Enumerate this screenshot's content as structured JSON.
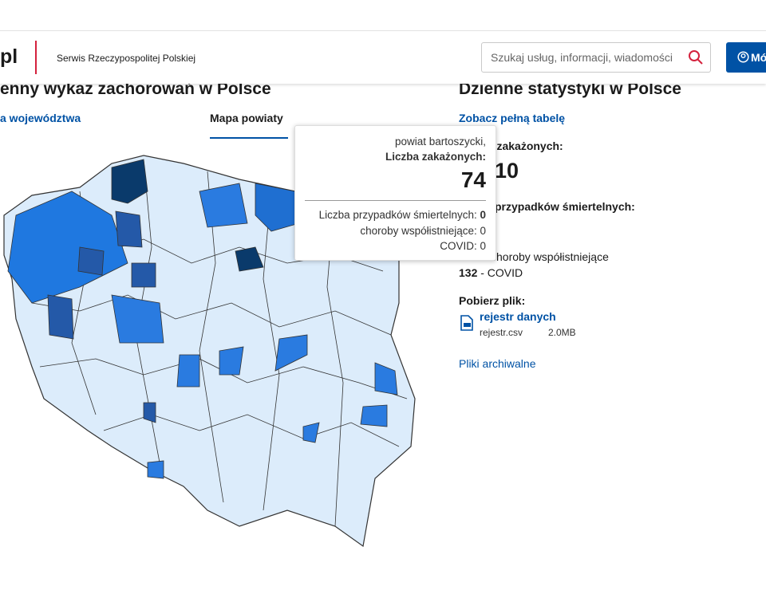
{
  "header": {
    "logo": "pl",
    "site_name": "Serwis Rzeczypospolitej Polskiej",
    "search_placeholder": "Szukaj usług, informacji, wiadomości",
    "login_button": "Mó"
  },
  "map_section": {
    "title": "enny wykaz zachorowań w Polsce",
    "tabs": [
      "a województwa",
      "Mapa powiaty"
    ]
  },
  "tooltip": {
    "region": "powiat bartoszycki,",
    "cases_label": "Liczba zakażonych:",
    "cases": 74,
    "deaths_label": "Liczba przypadków śmiertelnych:",
    "deaths": 0,
    "comorbid_label": "choroby współistniejące:",
    "comorbid": 0,
    "covid_label": "COVID:",
    "covid": 0
  },
  "stats": {
    "title": "Dzienne statystyki w Polsce",
    "table_link": "Zobacz pełną tabelę",
    "cases_label": "zakażonych:",
    "cases": "10",
    "deaths_label": "przypadków śmiertelnych:",
    "comorbid_label": "choroby współistniejące",
    "covid_count": 132,
    "covid_label": "- COVID",
    "download_label": "Pobierz plik:",
    "file_title": "rejestr danych",
    "file_name": "rejestr.csv",
    "file_size": "2.0MB",
    "archive_link": "Pliki archiwalne"
  }
}
